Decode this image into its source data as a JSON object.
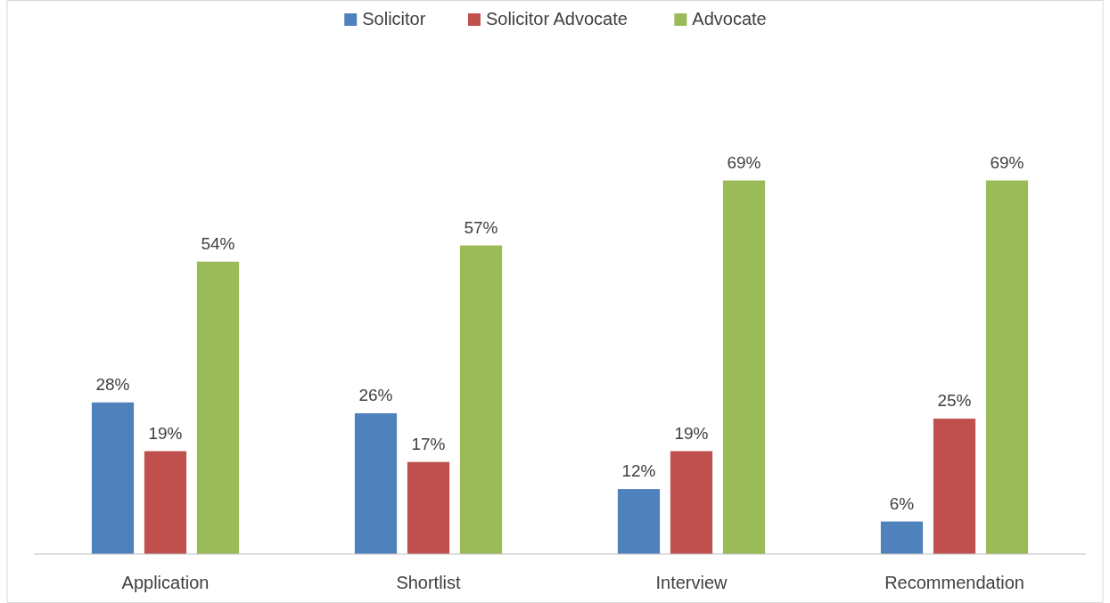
{
  "chart_data": {
    "type": "bar",
    "categories": [
      "Application",
      "Shortlist",
      "Interview",
      "Recommendation"
    ],
    "series": [
      {
        "name": "Solicitor",
        "color": "#4f81bd",
        "values": [
          28,
          26,
          12,
          6
        ],
        "value_labels": [
          "28%",
          "26%",
          "12%",
          "6%"
        ]
      },
      {
        "name": "Solicitor Advocate",
        "color": "#c0504d",
        "values": [
          19,
          17,
          19,
          25
        ],
        "value_labels": [
          "19%",
          "17%",
          "19%",
          "25%"
        ]
      },
      {
        "name": "Advocate",
        "color": "#9bbb59",
        "values": [
          54,
          57,
          69,
          69
        ],
        "value_labels": [
          "54%",
          "57%",
          "69%",
          "69%"
        ]
      }
    ],
    "legend": "top",
    "grid": false
  }
}
